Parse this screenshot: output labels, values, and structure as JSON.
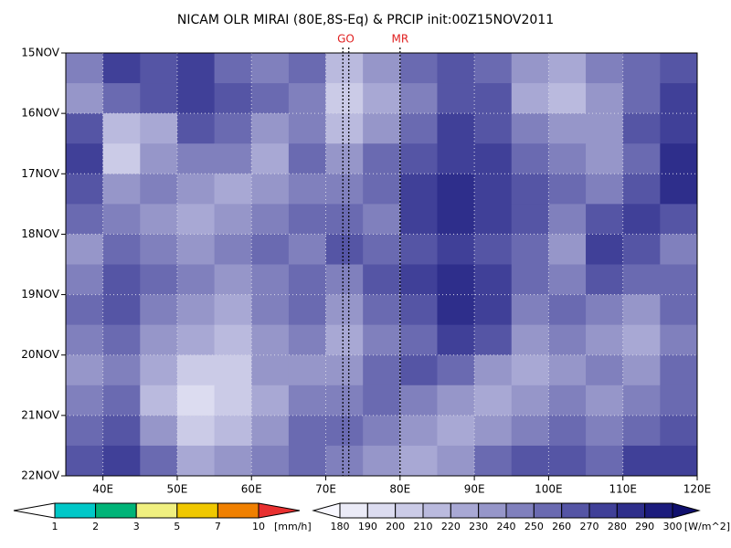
{
  "chart_data": {
    "type": "heatmap",
    "title": "NICAM OLR MIRAI (80E,8S-Eq) & PRCIP init:00Z15NOV2011",
    "xlim": [
      35,
      120
    ],
    "xticks": [
      {
        "value": 40,
        "label": "40E"
      },
      {
        "value": 50,
        "label": "50E"
      },
      {
        "value": 60,
        "label": "60E"
      },
      {
        "value": 70,
        "label": "70E"
      },
      {
        "value": 80,
        "label": "80E"
      },
      {
        "value": 90,
        "label": "90E"
      },
      {
        "value": 100,
        "label": "100E"
      },
      {
        "value": 110,
        "label": "110E"
      },
      {
        "value": 120,
        "label": "120E"
      }
    ],
    "ylim": [
      15,
      22
    ],
    "yticks": [
      {
        "value": 15,
        "label": "15NOV"
      },
      {
        "value": 16,
        "label": "16NOV"
      },
      {
        "value": 17,
        "label": "17NOV"
      },
      {
        "value": 18,
        "label": "18NOV"
      },
      {
        "value": 19,
        "label": "19NOV"
      },
      {
        "value": 20,
        "label": "20NOV"
      },
      {
        "value": 21,
        "label": "21NOV"
      },
      {
        "value": 22,
        "label": "22NOV"
      }
    ],
    "grid": true,
    "olr": {
      "lon": [
        37.5,
        42.5,
        47.5,
        52.5,
        57.5,
        62.5,
        67.5,
        72.5,
        77.5,
        82.5,
        87.5,
        92.5,
        97.5,
        102.5,
        107.5,
        112.5,
        117.5
      ],
      "day": [
        15.25,
        15.75,
        16.25,
        16.75,
        17.25,
        17.75,
        18.25,
        18.75,
        19.25,
        19.75,
        20.25,
        20.75,
        21.25,
        21.75
      ],
      "values": [
        [
          240,
          270,
          260,
          270,
          250,
          240,
          250,
          210,
          230,
          250,
          260,
          250,
          230,
          220,
          240,
          250,
          260
        ],
        [
          230,
          250,
          260,
          270,
          260,
          250,
          240,
          200,
          220,
          240,
          260,
          260,
          220,
          210,
          230,
          250,
          270
        ],
        [
          260,
          210,
          220,
          260,
          250,
          230,
          240,
          210,
          230,
          250,
          270,
          260,
          240,
          230,
          230,
          260,
          270
        ],
        [
          270,
          200,
          230,
          240,
          240,
          220,
          250,
          230,
          250,
          260,
          270,
          270,
          250,
          240,
          230,
          250,
          280
        ],
        [
          260,
          230,
          240,
          230,
          220,
          230,
          240,
          240,
          250,
          270,
          280,
          270,
          260,
          250,
          240,
          260,
          280
        ],
        [
          250,
          240,
          230,
          220,
          230,
          240,
          250,
          250,
          240,
          270,
          280,
          270,
          260,
          240,
          260,
          270,
          260
        ],
        [
          230,
          250,
          240,
          230,
          240,
          250,
          240,
          260,
          250,
          260,
          270,
          260,
          250,
          230,
          270,
          260,
          240
        ],
        [
          240,
          260,
          250,
          240,
          230,
          240,
          250,
          240,
          260,
          270,
          280,
          270,
          250,
          240,
          260,
          250,
          250
        ],
        [
          250,
          260,
          240,
          230,
          220,
          240,
          250,
          230,
          250,
          260,
          280,
          270,
          240,
          250,
          240,
          230,
          250
        ],
        [
          240,
          250,
          230,
          220,
          210,
          230,
          240,
          220,
          240,
          250,
          270,
          260,
          230,
          240,
          230,
          220,
          240
        ],
        [
          230,
          240,
          220,
          200,
          200,
          230,
          230,
          230,
          250,
          260,
          250,
          230,
          220,
          230,
          240,
          230,
          250
        ],
        [
          240,
          250,
          210,
          190,
          200,
          220,
          240,
          240,
          250,
          240,
          230,
          220,
          230,
          240,
          230,
          240,
          250
        ],
        [
          250,
          260,
          230,
          200,
          210,
          230,
          250,
          250,
          240,
          230,
          220,
          230,
          240,
          250,
          240,
          250,
          260
        ],
        [
          260,
          270,
          250,
          220,
          230,
          240,
          250,
          240,
          230,
          220,
          230,
          250,
          260,
          260,
          250,
          270,
          270
        ]
      ],
      "levels": [
        180,
        190,
        200,
        210,
        220,
        230,
        240,
        250,
        260,
        270,
        280,
        290,
        300
      ],
      "colors": [
        "#f8f8ff",
        "#ebebf7",
        "#dcdcf0",
        "#cbcbe7",
        "#babade",
        "#a8a8d4",
        "#9696c9",
        "#8080bd",
        "#6a6ab1",
        "#5555a5",
        "#404098",
        "#2e2e8b",
        "#1c1c7d",
        "#10106e"
      ],
      "unit": "[W/m^2]"
    },
    "precip": {
      "levels": [
        1,
        2,
        3,
        5,
        7,
        10
      ],
      "colors": [
        "#ffffff",
        "#00c8c8",
        "#00b478",
        "#f0f080",
        "#f0c800",
        "#f08000",
        "#e83030"
      ],
      "unit": "[mm/h]"
    },
    "markers": [
      {
        "label": "GO",
        "lon": [
          72.3,
          73.1
        ]
      },
      {
        "label": "MR",
        "lon": [
          80
        ]
      }
    ]
  }
}
